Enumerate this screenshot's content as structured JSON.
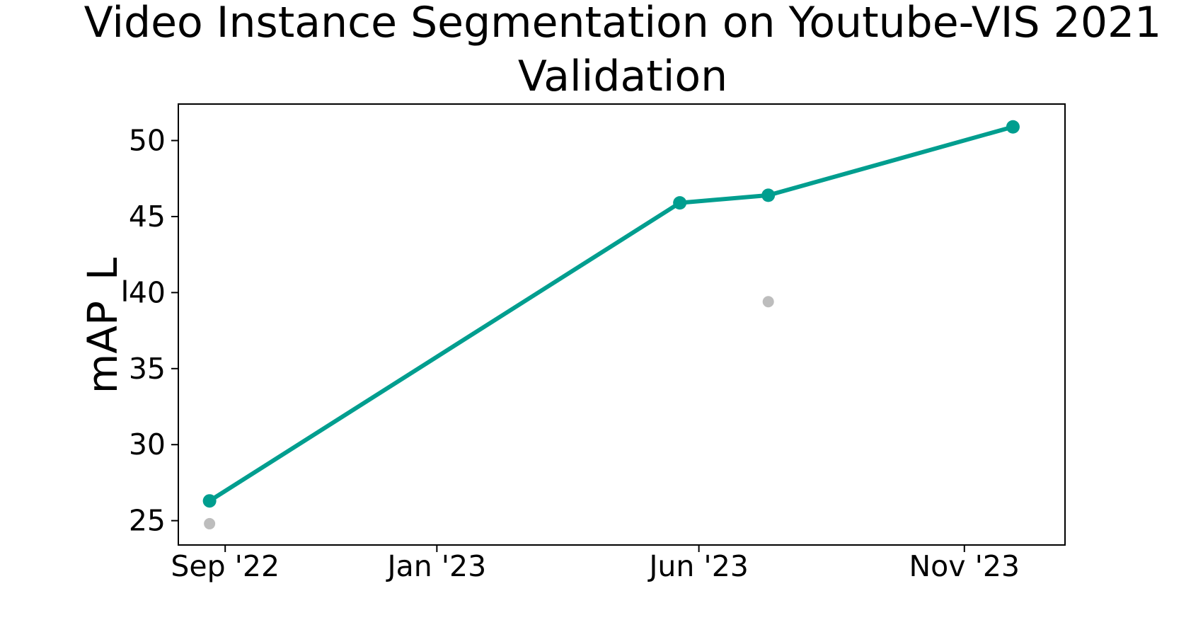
{
  "chart_data": {
    "type": "line",
    "title_line1": "Video Instance Segmentation on Youtube-VIS 2021",
    "title_line2": "Validation",
    "xlabel": "",
    "ylabel": "mAP_L",
    "ylim": [
      23.4,
      52.4
    ],
    "xlim": [
      "2022-08-05",
      "2023-12-29"
    ],
    "x_ticks": [
      {
        "date": "2022-09-01",
        "label": "Sep '22"
      },
      {
        "date": "2023-01-01",
        "label": "Jan '23"
      },
      {
        "date": "2023-06-01",
        "label": "Jun '23"
      },
      {
        "date": "2023-11-01",
        "label": "Nov '23"
      }
    ],
    "y_ticks": [
      25,
      30,
      35,
      40,
      45,
      50
    ],
    "grid": false,
    "series": [
      {
        "color": "#009e8f",
        "points": [
          {
            "x": "2022-08-23",
            "y": 26.3
          },
          {
            "x": "2023-05-21",
            "y": 45.9
          },
          {
            "x": "2023-07-11",
            "y": 46.4
          },
          {
            "x": "2023-11-29",
            "y": 50.9
          }
        ]
      },
      {
        "color": "#bdbdbd",
        "points": [
          {
            "x": "2022-08-23",
            "y": 24.8
          },
          {
            "x": "2023-07-11",
            "y": 39.4
          }
        ]
      }
    ]
  }
}
